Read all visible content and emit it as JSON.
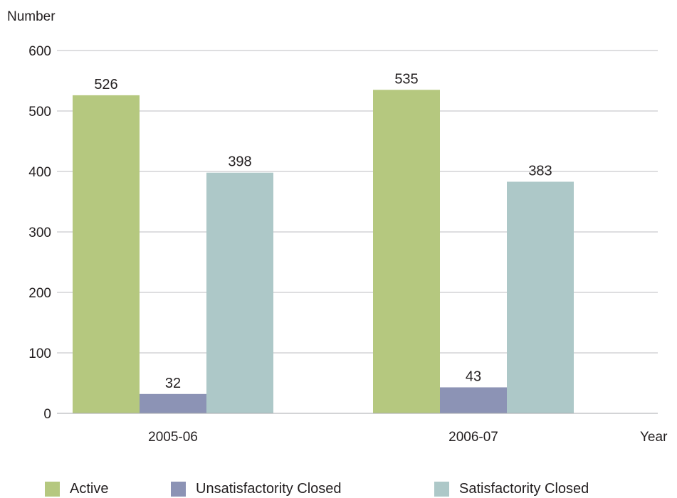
{
  "chart_data": {
    "type": "bar",
    "categories": [
      "2005-06",
      "2006-07"
    ],
    "series": [
      {
        "name": "Active",
        "values": [
          526,
          535
        ],
        "color": "#b5c87f"
      },
      {
        "name": "Unsatisfactority Closed",
        "values": [
          32,
          43
        ],
        "color": "#8c93b5"
      },
      {
        "name": "Satisfactority Closed",
        "values": [
          398,
          383
        ],
        "color": "#adc8c8"
      }
    ],
    "ylabel": "Number",
    "xlabel": "Year",
    "ylim": [
      0,
      600
    ],
    "yticks": [
      0,
      100,
      200,
      300,
      400,
      500,
      600
    ],
    "grid": true,
    "legend_position": "bottom"
  }
}
